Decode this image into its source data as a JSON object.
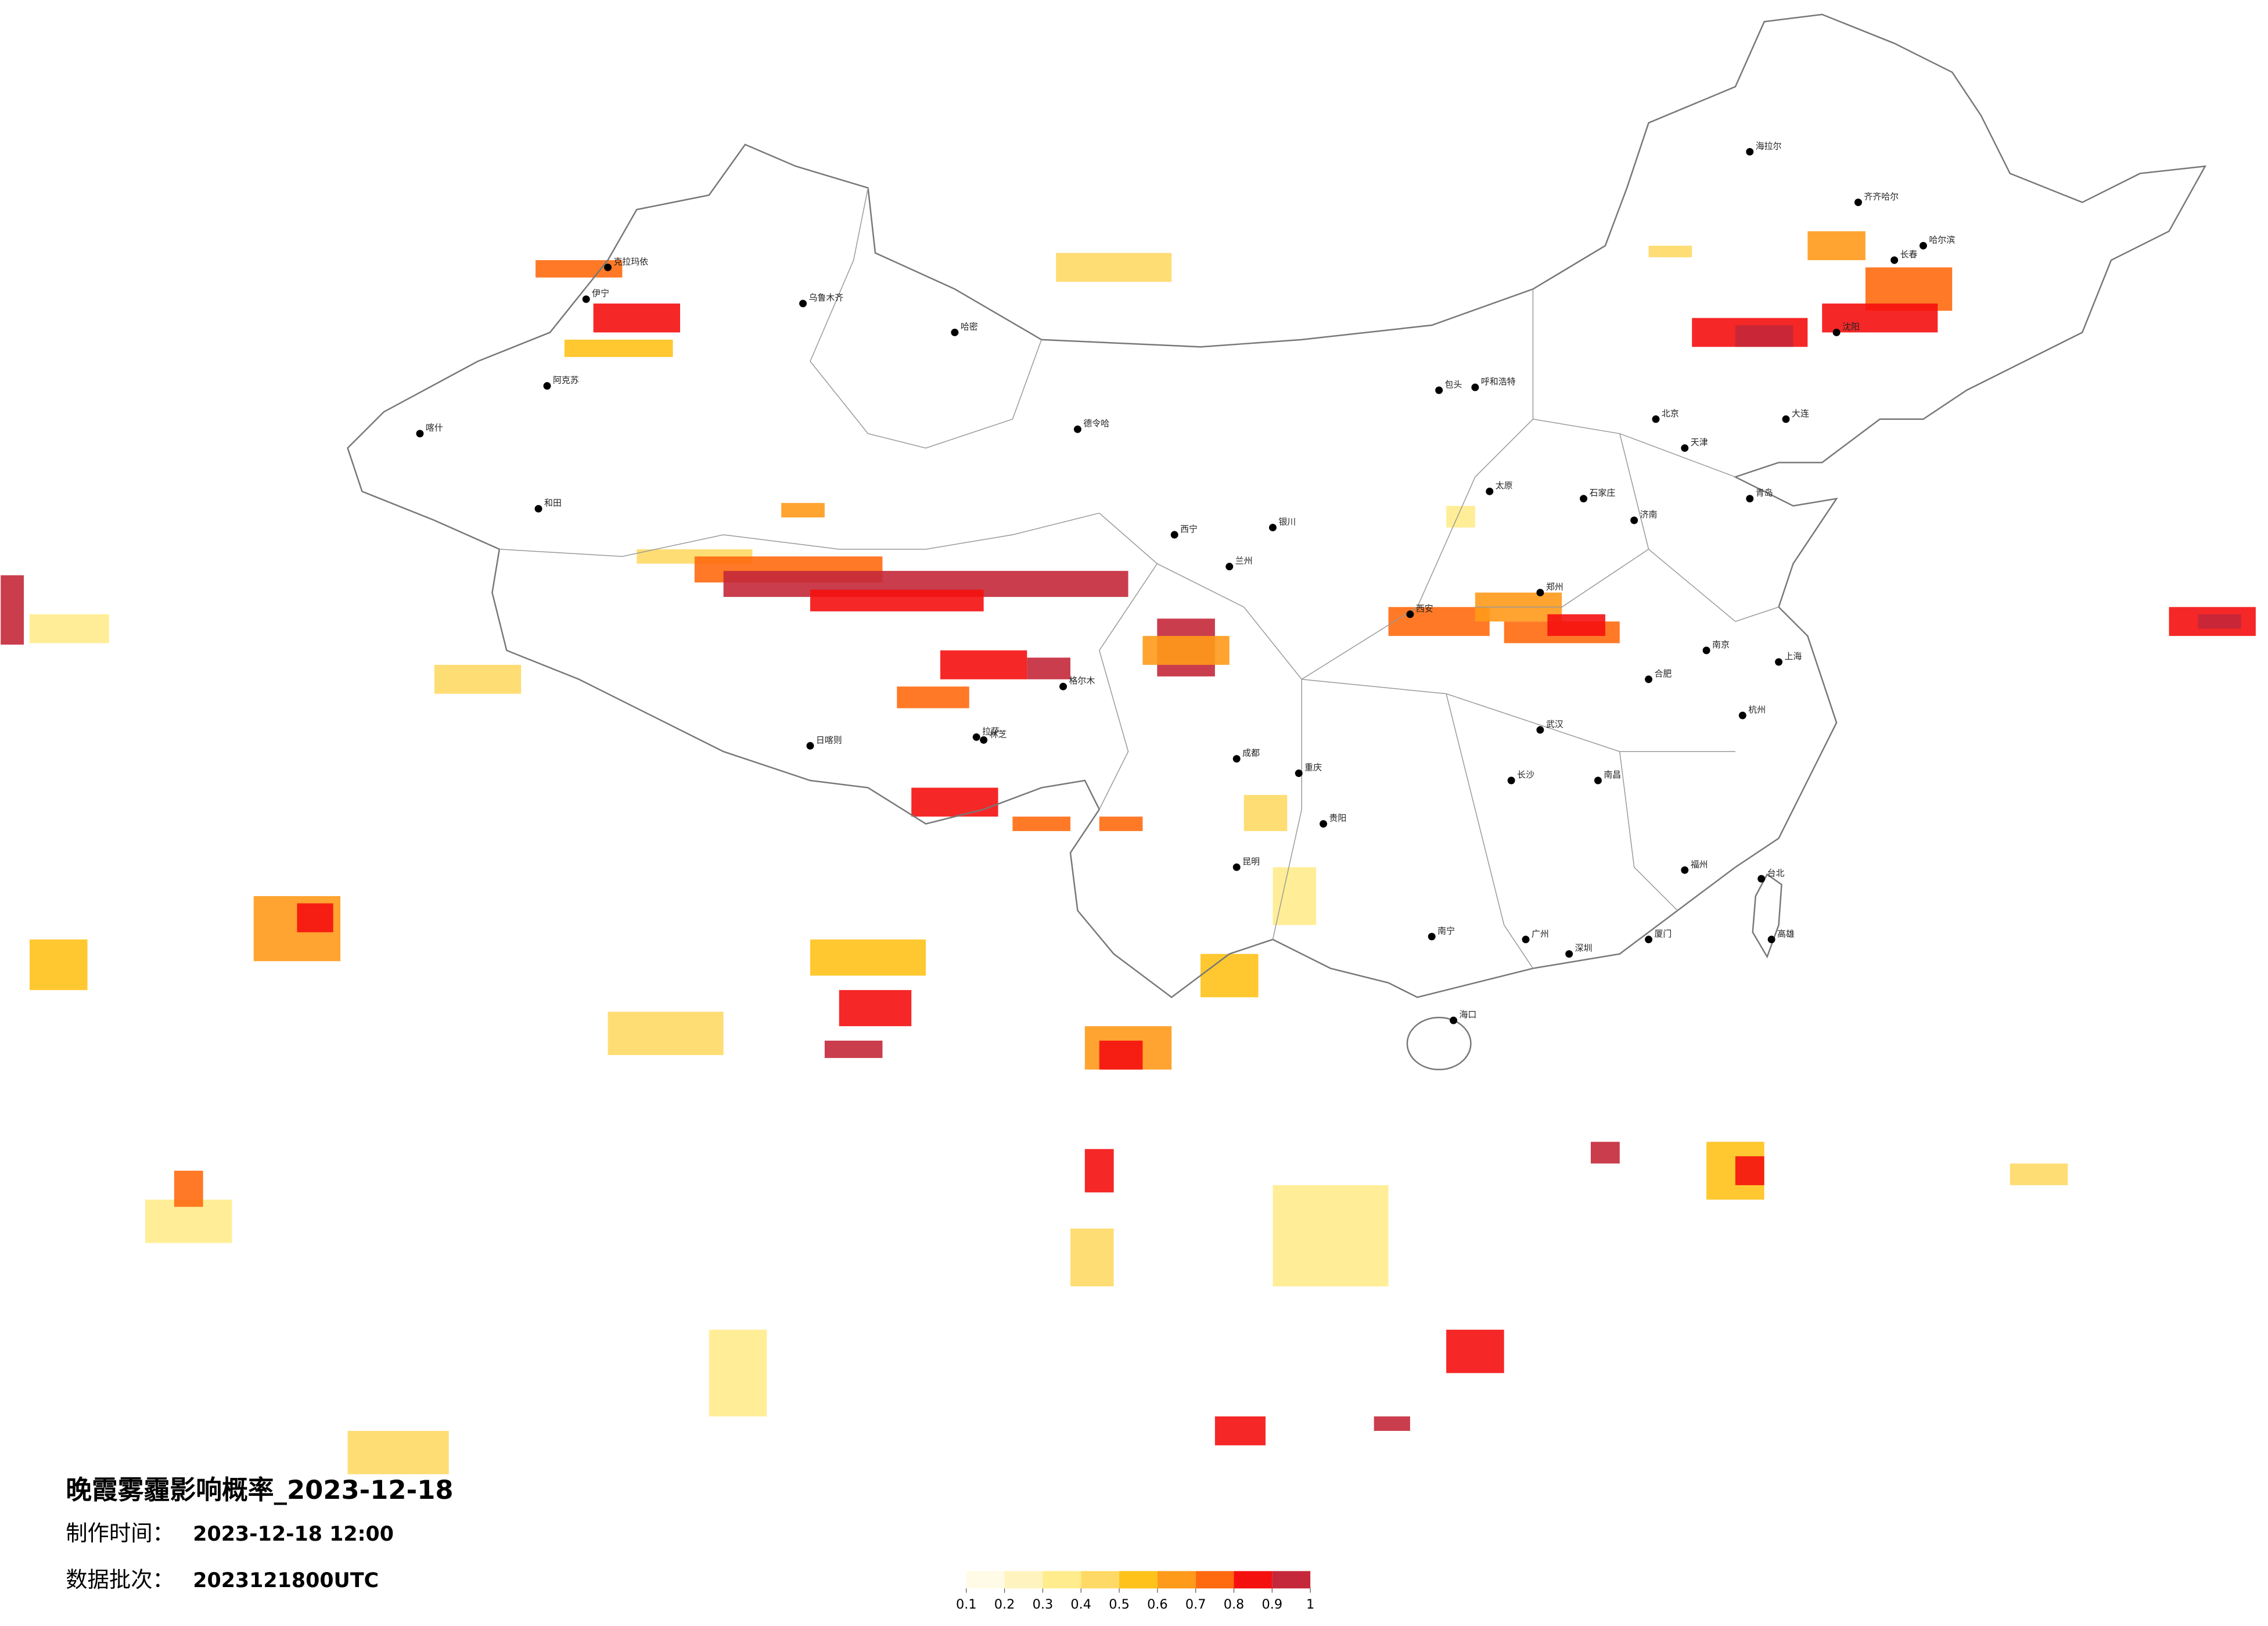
{
  "header": {
    "title": "晚霞雾霾影响概率_2023-12-18",
    "made_label": "制作时间：",
    "made_value": "2023-12-18 12:00",
    "batch_label": "数据批次：",
    "batch_value": "2023121800UTC"
  },
  "colorbar": {
    "ticks": [
      0.1,
      0.2,
      0.3,
      0.4,
      0.5,
      0.6,
      0.7,
      0.8,
      0.9,
      1
    ],
    "colors": [
      "#fffbe6",
      "#fff4bf",
      "#ffec8c",
      "#ffd966",
      "#ffc21a",
      "#ff9a1a",
      "#ff6a10",
      "#f51010",
      "#c4283a"
    ]
  },
  "cities": [
    "克拉玛依",
    "乌鲁木齐",
    "哈密",
    "和田",
    "喀什",
    "阿克苏",
    "伊宁",
    "格尔木",
    "德令哈",
    "拉萨",
    "日喀则",
    "林芝",
    "西宁",
    "兰州",
    "银川",
    "呼和浩特",
    "包头",
    "成都",
    "重庆",
    "昆明",
    "贵阳",
    "南宁",
    "海口",
    "广州",
    "深圳",
    "福州",
    "台北",
    "杭州",
    "上海",
    "南京",
    "武汉",
    "长沙",
    "南昌",
    "合肥",
    "郑州",
    "济南",
    "石家庄",
    "北京",
    "天津",
    "太原",
    "西安",
    "沈阳",
    "长春",
    "哈尔滨",
    "齐齐哈尔",
    "海拉尔",
    "大连",
    "青岛",
    "厦门",
    "高雄"
  ]
}
